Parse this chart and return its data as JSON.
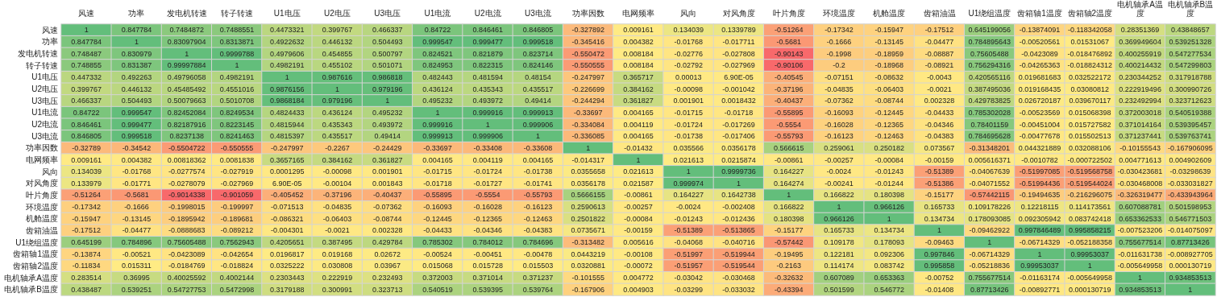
{
  "chart_data": {
    "type": "heatmap",
    "categories": [
      "风速",
      "功率",
      "发电机转速",
      "转子转速",
      "U1电压",
      "U2电压",
      "U3电压",
      "U1电流",
      "U2电流",
      "U3电流",
      "功率因数",
      "电网频率",
      "风向",
      "对风角度",
      "叶片角度",
      "环境温度",
      "机舱温度",
      "齿箱油温",
      "U1绕组温度",
      "齿箱轴1温度",
      "齿箱轴2温度",
      "电机轴承A温度",
      "电机轴承B温度"
    ],
    "y_categories": [
      "风速",
      "功率",
      "发电机转速",
      "转子转速",
      "U1电压",
      "U2电压",
      "U3电压",
      "U1电流",
      "U2电流",
      "U3电流",
      "功率因数",
      "电网频率",
      "风向",
      "对风角度",
      "叶片角度",
      "环境温度",
      "机舱温度",
      "齿箱油温",
      "U1绕组温度",
      "齿箱轴1温度",
      "齿箱轴2温度",
      "电机轴承A温度",
      "电机轴承B温度"
    ],
    "cells": [
      [
        1,
        0.847784,
        0.7484872,
        0.7488551,
        0.4473321,
        0.399767,
        0.466337,
        0.84722,
        0.846461,
        0.846805,
        -0.327892,
        0.009161,
        0.134039,
        0.1339789,
        -0.51264,
        -0.17342,
        -0.15947,
        -0.17512,
        0.645199056,
        -0.13874091,
        -0.118342058,
        0.28351369,
        0.43848657
      ],
      [
        0.847784,
        1,
        0.83097904,
        0.8313871,
        0.4922632,
        0.446132,
        0.504493,
        0.999547,
        0.999477,
        0.999518,
        -0.345416,
        0.004382,
        -0.01768,
        -0.017711,
        -0.5681,
        -0.1666,
        -0.13145,
        -0.04477,
        0.784895643,
        -0.00520561,
        0.01531067,
        0.369949604,
        0.539251328
      ],
      [
        0.748487,
        0.830979,
        1,
        0.9999788,
        0.4979606,
        0.454855,
        0.500797,
        0.824521,
        0.821879,
        0.823714,
        -0.550472,
        0.008184,
        -0.02776,
        -0.027808,
        -0.90143,
        -0.1998,
        -0.18959,
        -0.08887,
        0.75605488,
        -0.0423089,
        -0.018476892,
        0.400255919,
        0.547277534
      ],
      [
        0.748855,
        0.831387,
        0.99997884,
        1,
        0.4982191,
        0.455102,
        0.501071,
        0.824953,
        0.822315,
        0.824146,
        -0.550555,
        0.008184,
        -0.02792,
        -0.027969,
        -0.90106,
        -0.2,
        -0.18968,
        -0.08921,
        0.756294316,
        -0.04265363,
        -0.018824312,
        0.400214432,
        0.547299803
      ],
      [
        0.447332,
        0.492263,
        0.49796058,
        0.4982191,
        1,
        0.987616,
        0.986818,
        0.482443,
        0.481594,
        0.48154,
        -0.247997,
        0.365717,
        0.00013,
        6.9e-05,
        -0.40545,
        -0.07151,
        -0.08632,
        -0.0043,
        0.420565116,
        0.019681683,
        0.032522172,
        0.230344252,
        0.317918788
      ],
      [
        0.399767,
        0.446132,
        0.45485492,
        0.4551016,
        0.9876156,
        1,
        0.979196,
        0.436124,
        0.435343,
        0.435517,
        -0.226699,
        0.384162,
        -0.00098,
        -0.001042,
        -0.37196,
        -0.04835,
        -0.06403,
        -0.0021,
        0.387495036,
        0.019168435,
        0.03080812,
        0.222919496,
        0.300990726
      ],
      [
        0.466337,
        0.504493,
        0.50079663,
        0.5010708,
        0.9868184,
        0.979196,
        1,
        0.495232,
        0.493972,
        0.49414,
        -0.244294,
        0.361827,
        0.001901,
        0.0018432,
        -0.40437,
        -0.07362,
        -0.08744,
        0.002328,
        0.429783825,
        0.026720187,
        0.039670117,
        0.232492994,
        0.323712623
      ],
      [
        0.84722,
        0.999547,
        0.82452084,
        0.8249534,
        0.4824433,
        0.436124,
        0.495232,
        1,
        0.999916,
        0.999913,
        -0.33697,
        0.004165,
        -0.01715,
        -0.01718,
        -0.55895,
        -0.16093,
        -0.12445,
        -0.04433,
        0.785302028,
        -0.00523569,
        0.015068398,
        0.372003018,
        0.540519388
      ],
      [
        0.846461,
        0.999477,
        0.82187916,
        0.8223145,
        0.4815944,
        0.435343,
        0.493972,
        0.999916,
        1,
        0.999906,
        -0.334084,
        0.004119,
        -0.01724,
        -0.017269,
        -0.5554,
        -0.16028,
        -0.12365,
        -0.04346,
        0.78401159,
        -0.00451004,
        0.015727582,
        0.371014164,
        0.539395457
      ],
      [
        0.846805,
        0.999518,
        0.8237138,
        0.8241463,
        0.4815397,
        0.435517,
        0.49414,
        0.999913,
        0.999906,
        1,
        -0.336085,
        0.004165,
        -0.01738,
        -0.017406,
        -0.55793,
        -0.16123,
        -0.12463,
        -0.04383,
        0.784695628,
        -0.00477678,
        0.015502513,
        0.371237441,
        0.539763741
      ],
      [
        -0.32789,
        -0.34542,
        -0.5504722,
        -0.550555,
        -0.247997,
        -0.2267,
        -0.24429,
        -0.33697,
        -0.33408,
        -0.33608,
        1,
        -0.01432,
        0.035566,
        0.0356178,
        0.566615,
        0.259061,
        0.250182,
        0.073567,
        -0.31348201,
        0.044321889,
        0.032088106,
        -0.10155543,
        -0.167906095
      ],
      [
        0.009161,
        0.004382,
        0.00818362,
        0.0081838,
        0.3657165,
        0.384162,
        0.361827,
        0.004165,
        0.004119,
        0.004165,
        -0.014317,
        1,
        0.021613,
        0.0215874,
        -0.00861,
        -0.00257,
        -0.00084,
        -0.00159,
        0.005616371,
        -0.0010782,
        -0.000722502,
        0.004771613,
        0.004902609
      ],
      [
        0.134039,
        -0.01768,
        -0.0277574,
        -0.027919,
        0.0001295,
        -0.00098,
        0.001901,
        -0.01715,
        -0.01724,
        -0.01738,
        0.0355658,
        0.021613,
        1,
        0.9999736,
        0.164227,
        -0.0024,
        -0.01243,
        -0.51389,
        -0.04067639,
        -0.51997085,
        -0.519568758,
        -0.030423681,
        -0.03298639
      ],
      [
        0.133979,
        -0.01771,
        -0.0278079,
        -0.027969,
        6.9e-05,
        -0.00104,
        0.001843,
        -0.01718,
        -0.01727,
        -0.01741,
        0.0356178,
        0.021587,
        0.999974,
        1,
        0.164274,
        -0.00241,
        -0.01244,
        -0.51386,
        -0.04071552,
        -0.51994436,
        -0.519544024,
        -0.030468008,
        -0.033031827
      ],
      [
        -0.51264,
        -0.5681,
        -0.9014338,
        -0.901059,
        -0.405452,
        -0.37196,
        -0.40437,
        -0.55895,
        -0.5554,
        -0.55793,
        0.5666155,
        -0.00861,
        0.164227,
        0.1642738,
        1,
        0.166822,
        0.180398,
        -0.15177,
        -0.57442115,
        -0.19494635,
        -0.216296075,
        -0.326319477,
        -0.433943964
      ],
      [
        -0.17342,
        -0.1666,
        -0.1998015,
        -0.199997,
        -0.071513,
        -0.04835,
        -0.07362,
        -0.16093,
        -0.16028,
        -0.16123,
        0.2590613,
        -0.00257,
        -0.0024,
        -0.002408,
        0.166822,
        1,
        0.966126,
        0.165733,
        0.109178226,
        0.12218115,
        0.114173561,
        0.607088781,
        0.501598953
      ],
      [
        -0.15947,
        -0.13145,
        -0.1895942,
        -0.189681,
        -0.086321,
        -0.06403,
        -0.08744,
        -0.12445,
        -0.12365,
        -0.12463,
        0.2501822,
        -0.00084,
        -0.01243,
        -0.012436,
        0.180398,
        0.966126,
        1,
        0.134734,
        0.178093085,
        0.092305942,
        0.083742418,
        0.653362533,
        0.546771503
      ],
      [
        -0.17512,
        -0.04477,
        -0.0888683,
        -0.089212,
        -0.004301,
        -0.0021,
        0.002328,
        -0.04433,
        -0.04346,
        -0.04383,
        0.0735671,
        -0.00159,
        -0.51389,
        -0.513865,
        -0.15177,
        0.165733,
        0.134734,
        1,
        -0.09462922,
        0.997846489,
        0.995858215,
        -0.007523206,
        -0.014075097
      ],
      [
        0.645199,
        0.784896,
        0.75605488,
        0.7562943,
        0.4205651,
        0.387495,
        0.429784,
        0.785302,
        0.784012,
        0.784696,
        -0.313482,
        0.005616,
        -0.04068,
        -0.040716,
        -0.57442,
        0.109178,
        0.178093,
        -0.09463,
        1,
        -0.06714329,
        -0.052188358,
        0.755677514,
        0.87713426
      ],
      [
        -0.13874,
        -0.00521,
        -0.0423089,
        -0.042654,
        0.0196817,
        0.019168,
        0.02672,
        -0.00524,
        -0.00451,
        -0.00478,
        0.0443219,
        -0.00108,
        -0.51997,
        -0.519944,
        -0.19495,
        0.122181,
        0.092306,
        0.997846,
        -0.06714329,
        1,
        0.99953037,
        -0.011631738,
        -0.008927705
      ],
      [
        -0.11834,
        0.015311,
        -0.0184769,
        -0.018824,
        0.0325222,
        0.030808,
        0.03967,
        0.015068,
        0.015728,
        0.015503,
        0.0320881,
        -0.00072,
        -0.51957,
        -0.519544,
        -0.2163,
        0.114174,
        0.083742,
        0.995858,
        -0.05218836,
        0.99953037,
        1,
        -0.005649958,
        0.000130719
      ],
      [
        0.283514,
        0.36995,
        0.40025592,
        0.4002144,
        0.2303443,
        0.222919,
        0.232493,
        0.372003,
        0.371014,
        0.371237,
        -0.101555,
        0.004772,
        -0.03042,
        -0.030468,
        -0.32632,
        0.607089,
        0.653363,
        -0.00752,
        0.755677514,
        -0.01163174,
        -0.005649958,
        1,
        0.934853513
      ],
      [
        0.438487,
        0.539251,
        0.54727753,
        0.5472998,
        0.3179188,
        0.300991,
        0.323713,
        0.540519,
        0.539395,
        0.539764,
        -0.167906,
        0.004903,
        -0.03299,
        -0.033032,
        -0.43394,
        0.501599,
        0.546772,
        -0.01408,
        0.87713426,
        -0.00892771,
        0.000130719,
        0.934853513,
        1
      ]
    ],
    "cell_labels": [
      [
        "1",
        "0.847784",
        "0.7484872",
        "0.7488551",
        "0.4473321",
        "0.399767",
        "0.466337",
        "0.84722",
        "0.846461",
        "0.846805",
        "-0.327892",
        "0.009161",
        "0.134039",
        "0.1339789",
        "-0.51264",
        "-0.17342",
        "-0.15947",
        "-0.17512",
        "0.645199056",
        "-0.13874091",
        "-0.118342058",
        "0.28351369",
        "0.43848657"
      ],
      [
        "0.847784",
        "1",
        "0.83097904",
        "0.8313871",
        "0.4922632",
        "0.446132",
        "0.504493",
        "0.999547",
        "0.999477",
        "0.999518",
        "-0.345416",
        "0.004382",
        "-0.01768",
        "-0.017711",
        "-0.5681",
        "-0.1666",
        "-0.13145",
        "-0.04477",
        "0.784895643",
        "-0.00520561",
        "0.01531067",
        "0.369949604",
        "0.539251328"
      ],
      [
        "0.748487",
        "0.830979",
        "1",
        "0.9999788",
        "0.4979606",
        "0.454855",
        "0.500797",
        "0.824521",
        "0.821879",
        "0.823714",
        "-0.550472",
        "0.008184",
        "-0.02776",
        "-0.027808",
        "-0.90143",
        "-0.1998",
        "-0.18959",
        "-0.08887",
        "0.75605488",
        "-0.0423089",
        "-0.018476892",
        "0.400255919",
        "0.547277534"
      ],
      [
        "0.748855",
        "0.831387",
        "0.99997884",
        "1",
        "0.4982191",
        "0.455102",
        "0.501071",
        "0.824953",
        "0.822315",
        "0.824146",
        "-0.550555",
        "0.008184",
        "-0.02792",
        "-0.027969",
        "-0.90106",
        "-0.2",
        "-0.18968",
        "-0.08921",
        "0.756294316",
        "-0.04265363",
        "-0.018824312",
        "0.400214432",
        "0.547299803"
      ],
      [
        "0.447332",
        "0.492263",
        "0.49796058",
        "0.4982191",
        "1",
        "0.987616",
        "0.986818",
        "0.482443",
        "0.481594",
        "0.48154",
        "-0.247997",
        "0.365717",
        "0.00013",
        "6.90E-05",
        "-0.40545",
        "-0.07151",
        "-0.08632",
        "-0.0043",
        "0.420565116",
        "0.019681683",
        "0.032522172",
        "0.230344252",
        "0.317918788"
      ],
      [
        "0.399767",
        "0.446132",
        "0.45485492",
        "0.4551016",
        "0.9876156",
        "1",
        "0.979196",
        "0.436124",
        "0.435343",
        "0.435517",
        "-0.226699",
        "0.384162",
        "-0.00098",
        "-0.001042",
        "-0.37196",
        "-0.04835",
        "-0.06403",
        "-0.0021",
        "0.387495036",
        "0.019168435",
        "0.03080812",
        "0.222919496",
        "0.300990726"
      ],
      [
        "0.466337",
        "0.504493",
        "0.50079663",
        "0.5010708",
        "0.9868184",
        "0.979196",
        "1",
        "0.495232",
        "0.493972",
        "0.49414",
        "-0.244294",
        "0.361827",
        "0.001901",
        "0.0018432",
        "-0.40437",
        "-0.07362",
        "-0.08744",
        "0.002328",
        "0.429783825",
        "0.026720187",
        "0.039670117",
        "0.232492994",
        "0.323712623"
      ],
      [
        "0.84722",
        "0.999547",
        "0.82452084",
        "0.8249534",
        "0.4824433",
        "0.436124",
        "0.495232",
        "1",
        "0.999916",
        "0.999913",
        "-0.33697",
        "0.004165",
        "-0.01715",
        "-0.01718",
        "-0.55895",
        "-0.16093",
        "-0.12445",
        "-0.04433",
        "0.785302028",
        "-0.00523569",
        "0.015068398",
        "0.372003018",
        "0.540519388"
      ],
      [
        "0.846461",
        "0.999477",
        "0.82187916",
        "0.8223145",
        "0.4815944",
        "0.435343",
        "0.493972",
        "0.999916",
        "1",
        "0.999906",
        "-0.334084",
        "0.004119",
        "-0.01724",
        "-0.017269",
        "-0.5554",
        "-0.16028",
        "-0.12365",
        "-0.04346",
        "0.78401159",
        "-0.00451004",
        "0.015727582",
        "0.371014164",
        "0.539395457"
      ],
      [
        "0.846805",
        "0.999518",
        "0.8237138",
        "0.8241463",
        "0.4815397",
        "0.435517",
        "0.49414",
        "0.999913",
        "0.999906",
        "1",
        "-0.336085",
        "0.004165",
        "-0.01738",
        "-0.017406",
        "-0.55793",
        "-0.16123",
        "-0.12463",
        "-0.04383",
        "0.784695628",
        "-0.00477678",
        "0.015502513",
        "0.371237441",
        "0.539763741"
      ],
      [
        "-0.32789",
        "-0.34542",
        "-0.5504722",
        "-0.550555",
        "-0.247997",
        "-0.2267",
        "-0.24429",
        "-0.33697",
        "-0.33408",
        "-0.33608",
        "1",
        "-0.01432",
        "0.035566",
        "0.0356178",
        "0.566615",
        "0.259061",
        "0.250182",
        "0.073567",
        "-0.31348201",
        "0.044321889",
        "0.032088106",
        "-0.10155543",
        "-0.167906095"
      ],
      [
        "0.009161",
        "0.004382",
        "0.00818362",
        "0.0081838",
        "0.3657165",
        "0.384162",
        "0.361827",
        "0.004165",
        "0.004119",
        "0.004165",
        "-0.014317",
        "1",
        "0.021613",
        "0.0215874",
        "-0.00861",
        "-0.00257",
        "-0.00084",
        "-0.00159",
        "0.005616371",
        "-0.0010782",
        "-0.000722502",
        "0.004771613",
        "0.004902609"
      ],
      [
        "0.134039",
        "-0.01768",
        "-0.0277574",
        "-0.027919",
        "0.0001295",
        "-0.00098",
        "0.001901",
        "-0.01715",
        "-0.01724",
        "-0.01738",
        "0.0355658",
        "0.021613",
        "1",
        "0.9999736",
        "0.164227",
        "-0.0024",
        "-0.01243",
        "-0.51389",
        "-0.04067639",
        "-0.51997085",
        "-0.519568758",
        "-0.030423681",
        "-0.03298639"
      ],
      [
        "0.133979",
        "-0.01771",
        "-0.0278079",
        "-0.027969",
        "6.90E-05",
        "-0.00104",
        "0.001843",
        "-0.01718",
        "-0.01727",
        "-0.01741",
        "0.0356178",
        "0.021587",
        "0.999974",
        "1",
        "0.164274",
        "-0.00241",
        "-0.01244",
        "-0.51386",
        "-0.04071552",
        "-0.51994436",
        "-0.519544024",
        "-0.030468008",
        "-0.033031827"
      ],
      [
        "-0.51264",
        "-0.5681",
        "-0.9014338",
        "-0.901059",
        "-0.405452",
        "-0.37196",
        "-0.40437",
        "-0.55895",
        "-0.5554",
        "-0.55793",
        "0.5666155",
        "-0.00861",
        "0.164227",
        "0.1642738",
        "1",
        "0.166822",
        "0.180398",
        "-0.15177",
        "-0.57442115",
        "-0.19494635",
        "-0.216296075",
        "-0.326319477",
        "-0.433943964"
      ],
      [
        "-0.17342",
        "-0.1666",
        "-0.1998015",
        "-0.199997",
        "-0.071513",
        "-0.04835",
        "-0.07362",
        "-0.16093",
        "-0.16028",
        "-0.16123",
        "0.2590613",
        "-0.00257",
        "-0.0024",
        "-0.002408",
        "0.166822",
        "1",
        "0.966126",
        "0.165733",
        "0.109178226",
        "0.12218115",
        "0.114173561",
        "0.607088781",
        "0.501598953"
      ],
      [
        "-0.15947",
        "-0.13145",
        "-0.1895942",
        "-0.189681",
        "-0.086321",
        "-0.06403",
        "-0.08744",
        "-0.12445",
        "-0.12365",
        "-0.12463",
        "0.2501822",
        "-0.00084",
        "-0.01243",
        "-0.012436",
        "0.180398",
        "0.966126",
        "1",
        "0.134734",
        "0.178093085",
        "0.092305942",
        "0.083742418",
        "0.653362533",
        "0.546771503"
      ],
      [
        "-0.17512",
        "-0.04477",
        "-0.0888683",
        "-0.089212",
        "-0.004301",
        "-0.0021",
        "0.002328",
        "-0.04433",
        "-0.04346",
        "-0.04383",
        "0.0735671",
        "-0.00159",
        "-0.51389",
        "-0.513865",
        "-0.15177",
        "0.165733",
        "0.134734",
        "1",
        "-0.09462922",
        "0.997846489",
        "0.995858215",
        "-0.007523206",
        "-0.014075097"
      ],
      [
        "0.645199",
        "0.784896",
        "0.75605488",
        "0.7562943",
        "0.4205651",
        "0.387495",
        "0.429784",
        "0.785302",
        "0.784012",
        "0.784696",
        "-0.313482",
        "0.005616",
        "-0.04068",
        "-0.040716",
        "-0.57442",
        "0.109178",
        "0.178093",
        "-0.09463",
        "1",
        "-0.06714329",
        "-0.052188358",
        "0.755677514",
        "0.87713426"
      ],
      [
        "-0.13874",
        "-0.00521",
        "-0.0423089",
        "-0.042654",
        "0.0196817",
        "0.019168",
        "0.02672",
        "-0.00524",
        "-0.00451",
        "-0.00478",
        "0.0443219",
        "-0.00108",
        "-0.51997",
        "-0.519944",
        "-0.19495",
        "0.122181",
        "0.092306",
        "0.997846",
        "-0.06714329",
        "1",
        "0.99953037",
        "-0.011631738",
        "-0.008927705"
      ],
      [
        "-0.11834",
        "0.015311",
        "-0.0184769",
        "-0.018824",
        "0.0325222",
        "0.030808",
        "0.03967",
        "0.015068",
        "0.015728",
        "0.015503",
        "0.0320881",
        "-0.00072",
        "-0.51957",
        "-0.519544",
        "-0.2163",
        "0.114174",
        "0.083742",
        "0.995858",
        "-0.05218836",
        "0.99953037",
        "1",
        "-0.005649958",
        "0.000130719"
      ],
      [
        "0.283514",
        "0.36995",
        "0.40025592",
        "0.4002144",
        "0.2303443",
        "0.222919",
        "0.232493",
        "0.372003",
        "0.371014",
        "0.371237",
        "-0.101555",
        "0.004772",
        "-0.03042",
        "-0.030468",
        "-0.32632",
        "0.607089",
        "0.653363",
        "-0.00752",
        "0.755677514",
        "-0.01163174",
        "-0.005649958",
        "1",
        "0.934853513"
      ],
      [
        "0.438487",
        "0.539251",
        "0.54727753",
        "0.5472998",
        "0.3179188",
        "0.300991",
        "0.323713",
        "0.540519",
        "0.539395",
        "0.539764",
        "-0.167906",
        "0.004903",
        "-0.03299",
        "-0.033032",
        "-0.43394",
        "0.501599",
        "0.546772",
        "-0.01408",
        "0.87713426",
        "-0.00892771",
        "0.000130719",
        "0.934853513",
        "1"
      ]
    ]
  }
}
